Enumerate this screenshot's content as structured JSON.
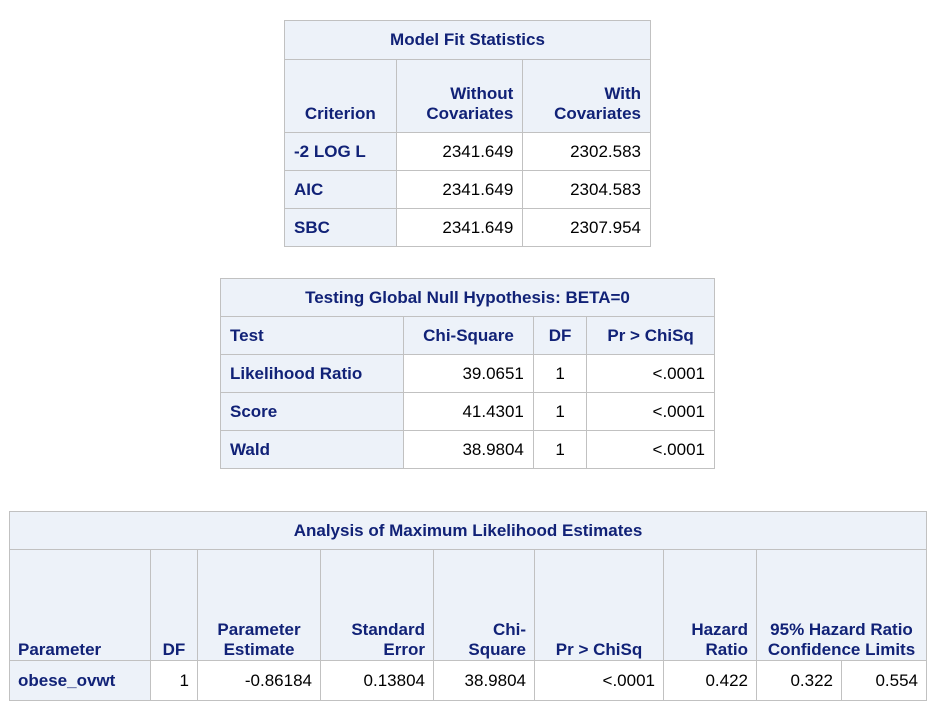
{
  "model_fit": {
    "title": "Model Fit Statistics",
    "headers": {
      "criterion": "Criterion",
      "without": "Without Covariates",
      "with": "With Covariates"
    },
    "rows": [
      {
        "criterion": "-2 LOG L",
        "without": "2341.649",
        "with": "2302.583"
      },
      {
        "criterion": "AIC",
        "without": "2341.649",
        "with": "2304.583"
      },
      {
        "criterion": "SBC",
        "without": "2341.649",
        "with": "2307.954"
      }
    ]
  },
  "global_null": {
    "title": "Testing Global Null Hypothesis: BETA=0",
    "headers": {
      "test": "Test",
      "chisq": "Chi-Square",
      "df": "DF",
      "p": "Pr > ChiSq"
    },
    "rows": [
      {
        "test": "Likelihood Ratio",
        "chisq": "39.0651",
        "df": "1",
        "p": "<.0001"
      },
      {
        "test": "Score",
        "chisq": "41.4301",
        "df": "1",
        "p": "<.0001"
      },
      {
        "test": "Wald",
        "chisq": "38.9804",
        "df": "1",
        "p": "<.0001"
      }
    ]
  },
  "mle": {
    "title": "Analysis of Maximum Likelihood Estimates",
    "headers": {
      "parameter": "Parameter",
      "df": "DF",
      "estimate": "Parameter Estimate",
      "se": "Standard Error",
      "chisq": "Chi-Square",
      "p": "Pr > ChiSq",
      "hr": "Hazard Ratio",
      "ci": "95% Hazard Ratio Confidence Limits"
    },
    "rows": [
      {
        "parameter": "obese_ovwt",
        "df": "1",
        "estimate": "-0.86184",
        "se": "0.13804",
        "chisq": "38.9804",
        "p": "<.0001",
        "hr": "0.422",
        "lower": "0.322",
        "upper": "0.554"
      }
    ]
  }
}
